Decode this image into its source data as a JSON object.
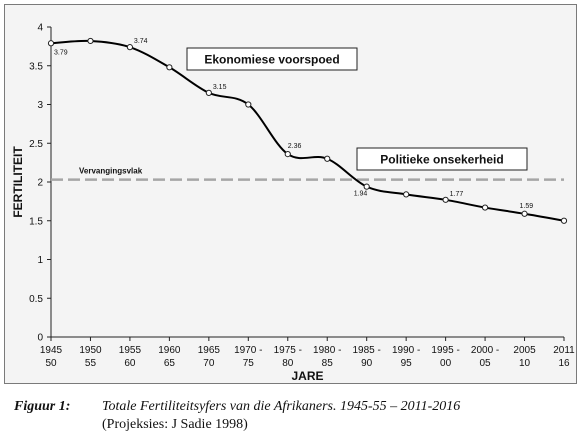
{
  "chart_data": {
    "type": "line",
    "xlabel": "JARE",
    "ylabel": "FERTILITEIT",
    "ylim": [
      0,
      4
    ],
    "yticks": [
      "0",
      "0.5",
      "1",
      "1.5",
      "2",
      "2.5",
      "3",
      "3.5",
      "4"
    ],
    "categories": [
      [
        "1945",
        "50"
      ],
      [
        "1950",
        "55"
      ],
      [
        "1955",
        "60"
      ],
      [
        "1960",
        "65"
      ],
      [
        "1965",
        "70"
      ],
      [
        "1970 -",
        "75"
      ],
      [
        "1975 -",
        "80"
      ],
      [
        "1980 -",
        "85"
      ],
      [
        "1985 -",
        "90"
      ],
      [
        "1990 -",
        "95"
      ],
      [
        "1995 -",
        "00"
      ],
      [
        "2000 -",
        "05"
      ],
      [
        "2005",
        "10"
      ],
      [
        "2011",
        "16"
      ]
    ],
    "grid": false,
    "series": [
      {
        "x": [
          0,
          1,
          2,
          3,
          4,
          5,
          6,
          7,
          8,
          9,
          10,
          11,
          12,
          13
        ],
        "values": [
          3.79,
          3.82,
          3.74,
          3.48,
          3.15,
          3.0,
          2.36,
          2.3,
          1.94,
          1.84,
          1.77,
          1.67,
          1.59,
          1.5
        ]
      }
    ],
    "data_labels": [
      {
        "point": 0,
        "text": "3.79"
      },
      {
        "point": 2,
        "text": "3.74"
      },
      {
        "point": 4,
        "text": "3.15"
      },
      {
        "point": 6,
        "text": "2.36"
      },
      {
        "point": 8,
        "text": "1.94"
      },
      {
        "point": 10,
        "text": "1.77"
      },
      {
        "point": 12,
        "text": "1.59"
      }
    ],
    "reference_line": {
      "value": 2.03,
      "label": "Vervangingsvlak",
      "color": "#a6a6a6"
    },
    "annotations": [
      {
        "text": "Ekonomiese voorspoed"
      },
      {
        "text": "Politieke onsekerheid"
      }
    ],
    "colors": {
      "line": "#000000",
      "marker_fill": "#ffffff",
      "plot_background": "#f4f4f4"
    }
  },
  "caption": {
    "label": "Figuur 1:",
    "text": "Totale Fertiliteitsyfers van die Afrikaners. 1945-55 – 2011-2016",
    "sub": "(Projeksies: J Sadie 1998)"
  }
}
